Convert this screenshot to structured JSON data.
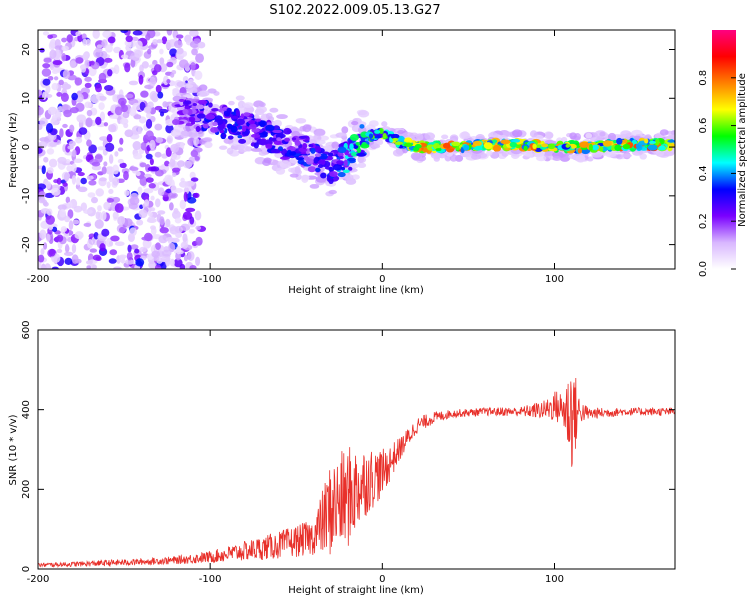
{
  "title": "S102.2022.009.05.13.G27",
  "chart_data": [
    {
      "type": "heatmap",
      "xlabel": "Height of straight line (km)",
      "ylabel": "Frequency (Hz)",
      "xlim": [
        -200,
        170
      ],
      "ylim": [
        -25,
        24
      ],
      "xticks": [
        -200,
        -100,
        0,
        100
      ],
      "yticks": [
        -20,
        -10,
        0,
        10,
        20
      ],
      "colorbar": {
        "label": "Normalized spectral amplitude",
        "range": [
          0,
          1
        ],
        "ticks": [
          0.0,
          0.2,
          0.4,
          0.6,
          0.8
        ],
        "colors": [
          "#ffffff",
          "#d8b6ff",
          "#7a00ff",
          "#0000ff",
          "#00ffff",
          "#00ff00",
          "#ffff00",
          "#ff8000",
          "#ff0000",
          "#ff0080"
        ]
      },
      "ridge": {
        "x": [
          -120,
          -110,
          -100,
          -90,
          -80,
          -70,
          -60,
          -50,
          -40,
          -30,
          -20,
          -10,
          0,
          10,
          20,
          40,
          60,
          80,
          100,
          120,
          140,
          170
        ],
        "y": [
          8,
          7,
          6,
          5,
          4,
          3,
          1,
          0,
          -2,
          -4,
          -2,
          2,
          3,
          1,
          0,
          0,
          0.5,
          0.5,
          0,
          0,
          0.5,
          0.5
        ],
        "amplitude": [
          0.2,
          0.25,
          0.3,
          0.3,
          0.3,
          0.3,
          0.3,
          0.3,
          0.3,
          0.3,
          0.4,
          0.5,
          0.55,
          0.6,
          0.7,
          0.7,
          0.7,
          0.7,
          0.65,
          0.65,
          0.7,
          0.75
        ]
      },
      "grid": false
    },
    {
      "type": "line",
      "xlabel": "Height of straight line (km)",
      "ylabel": "SNR (10 * v/v)",
      "xlim": [
        -200,
        170
      ],
      "ylim": [
        0,
        600
      ],
      "xticks": [
        -200,
        -100,
        0,
        100
      ],
      "yticks": [
        0,
        200,
        400,
        600
      ],
      "color": "#e8302a",
      "envelope": {
        "x": [
          -200,
          -180,
          -160,
          -140,
          -120,
          -100,
          -80,
          -60,
          -40,
          -30,
          -20,
          -10,
          0,
          10,
          20,
          30,
          40,
          60,
          80,
          95,
          100,
          105,
          110,
          115,
          120,
          140,
          170
        ],
        "mean": [
          10,
          12,
          15,
          18,
          22,
          30,
          45,
          60,
          80,
          150,
          180,
          220,
          240,
          300,
          360,
          380,
          390,
          395,
          395,
          400,
          410,
          400,
          390,
          395,
          390,
          395,
          395
        ],
        "spread": [
          5,
          6,
          8,
          8,
          10,
          15,
          25,
          35,
          45,
          120,
          130,
          90,
          60,
          30,
          20,
          15,
          10,
          10,
          12,
          25,
          40,
          45,
          150,
          30,
          15,
          10,
          10
        ]
      },
      "grid": false
    }
  ]
}
